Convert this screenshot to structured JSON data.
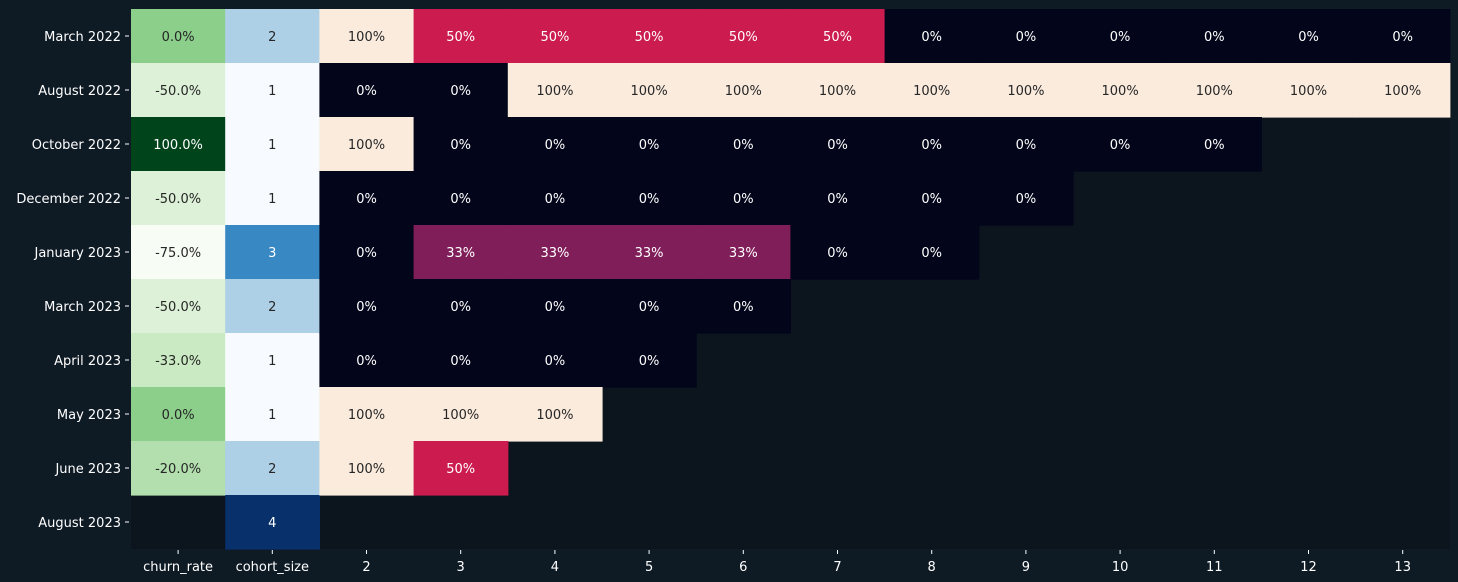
{
  "chart_data": {
    "type": "heatmap",
    "title": "",
    "xlabel": "",
    "ylabel": "",
    "rows": [
      "March 2022",
      "August 2022",
      "October 2022",
      "December 2022",
      "January 2023",
      "March 2023",
      "April 2023",
      "May 2023",
      "June 2023",
      "August 2023"
    ],
    "columns": [
      "churn_rate",
      "cohort_size",
      "2",
      "3",
      "4",
      "5",
      "6",
      "7",
      "8",
      "9",
      "10",
      "11",
      "12",
      "13"
    ],
    "churn_rate": {
      "values": [
        0.0,
        -50.0,
        100.0,
        -50.0,
        -75.0,
        -50.0,
        -33.0,
        0.0,
        -20.0,
        null
      ],
      "labels": [
        "0.0%",
        "-50.0%",
        "100.0%",
        "-50.0%",
        "-75.0%",
        "-50.0%",
        "-33.0%",
        "0.0%",
        "-20.0%",
        ""
      ],
      "colormap": "Greens"
    },
    "cohort_size": {
      "values": [
        2,
        1,
        1,
        1,
        3,
        2,
        1,
        1,
        2,
        4
      ],
      "labels": [
        "2",
        "1",
        "1",
        "1",
        "3",
        "2",
        "1",
        "1",
        "2",
        "4"
      ],
      "colormap": "Blues"
    },
    "retention": {
      "colormap": "rocket",
      "columns": [
        "2",
        "3",
        "4",
        "5",
        "6",
        "7",
        "8",
        "9",
        "10",
        "11",
        "12",
        "13"
      ],
      "values": [
        [
          100,
          50,
          50,
          50,
          50,
          50,
          0,
          0,
          0,
          0,
          0,
          0
        ],
        [
          0,
          0,
          100,
          100,
          100,
          100,
          100,
          100,
          100,
          100,
          100,
          100
        ],
        [
          100,
          0,
          0,
          0,
          0,
          0,
          0,
          0,
          0,
          0
        ],
        [
          0,
          0,
          0,
          0,
          0,
          0,
          0,
          0
        ],
        [
          0,
          33,
          33,
          33,
          33,
          0,
          0
        ],
        [
          0,
          0,
          0,
          0,
          0
        ],
        [
          0,
          0,
          0,
          0
        ],
        [
          100,
          100,
          100
        ],
        [
          100,
          50
        ],
        []
      ],
      "labels": [
        [
          "100%",
          "50%",
          "50%",
          "50%",
          "50%",
          "50%",
          "0%",
          "0%",
          "0%",
          "0%",
          "0%",
          "0%"
        ],
        [
          "0%",
          "0%",
          "100%",
          "100%",
          "100%",
          "100%",
          "100%",
          "100%",
          "100%",
          "100%",
          "100%",
          "100%"
        ],
        [
          "100%",
          "0%",
          "0%",
          "0%",
          "0%",
          "0%",
          "0%",
          "0%",
          "0%",
          "0%"
        ],
        [
          "0%",
          "0%",
          "0%",
          "0%",
          "0%",
          "0%",
          "0%",
          "0%"
        ],
        [
          "0%",
          "33%",
          "33%",
          "33%",
          "33%",
          "0%",
          "0%"
        ],
        [
          "0%",
          "0%",
          "0%",
          "0%",
          "0%"
        ],
        [
          "0%",
          "0%",
          "0%",
          "0%"
        ],
        [
          "100%",
          "100%",
          "100%"
        ],
        [
          "100%",
          "50%"
        ],
        []
      ]
    },
    "colors": {
      "page_background": "#0e1a24",
      "empty_cell": "#0c141d",
      "label_text": "#ffffff"
    }
  }
}
